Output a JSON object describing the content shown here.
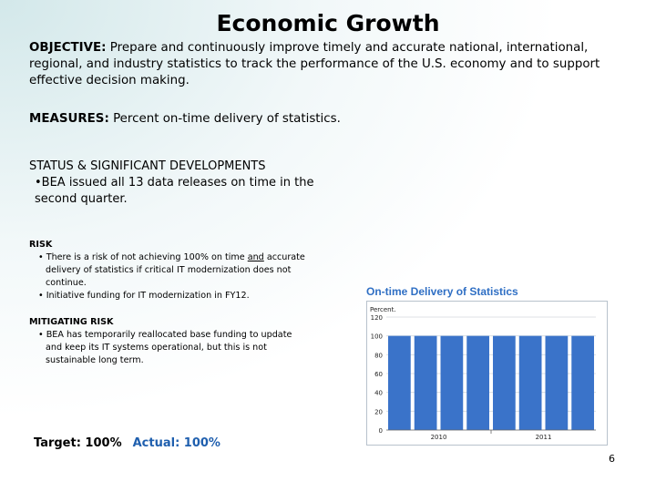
{
  "page": {
    "title": "Economic Growth",
    "objective_label": "OBJECTIVE:",
    "objective_text": " Prepare and continuously improve timely and accurate national, international, regional, and industry statistics to track the performance of the U.S. economy and to support effective decision making.",
    "measures_label": "MEASURES:",
    "measures_text": " Percent on-time delivery of statistics.",
    "status_heading": "STATUS & SIGNIFICANT DEVELOPMENTS",
    "status_item": "•BEA issued all 13 data releases on time in the second quarter.",
    "risk_heading": "RISK",
    "risk_items": [
      "• There is a risk of not achieving 100% on time and accurate delivery of statistics if critical IT modernization does not continue.",
      "• Initiative funding for IT modernization in FY12."
    ],
    "mitigating_heading": "MITIGATING RISK",
    "mitigating_items": [
      "• BEA has temporarily reallocated base funding to update and keep its IT systems operational, but this is not sustainable long term."
    ],
    "target_text": "Target: 100%",
    "actual_text": "Actual: 100%",
    "page_number": "6"
  },
  "chart_data": {
    "type": "bar",
    "title": "On-time Delivery of Statistics",
    "ylabel": "Percent",
    "ylim": [
      0,
      120
    ],
    "yticks": [
      0,
      20,
      40,
      60,
      80,
      100,
      120
    ],
    "categories": [
      "",
      "",
      "",
      "",
      "",
      "",
      "",
      ""
    ],
    "values": [
      100,
      100,
      100,
      100,
      100,
      100,
      100,
      100
    ],
    "xticklabels": [
      "2010",
      "2011"
    ],
    "grid": true,
    "colors": {
      "bar": "#3a73c9",
      "title": "#2f6fc4",
      "frame": "#b8c2cc"
    }
  }
}
